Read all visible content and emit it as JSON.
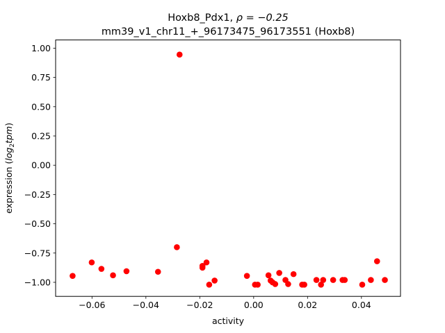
{
  "chart_data": {
    "type": "scatter",
    "title_line1_prefix": "Hoxb8_Pdx1, ",
    "title_line1_rho": "ρ = −0.25",
    "title_line2": "mm39_v1_chr11_+_96173475_96173551 (Hoxb8)",
    "xlabel": "activity",
    "ylabel_prefix": "expression (",
    "ylabel_math": "log",
    "ylabel_sub": "2",
    "ylabel_tpm": "tpm",
    "ylabel_suffix": ")",
    "xlim": [
      -0.0735,
      0.0545
    ],
    "ylim": [
      -1.12,
      1.07
    ],
    "x_ticks": [
      -0.06,
      -0.04,
      -0.02,
      0.0,
      0.02,
      0.04
    ],
    "x_tick_labels": [
      "−0.06",
      "−0.04",
      "−0.02",
      "0.00",
      "0.02",
      "0.04"
    ],
    "y_ticks": [
      1.0,
      0.75,
      0.5,
      0.25,
      0.0,
      -0.25,
      -0.5,
      -0.75,
      -1.0
    ],
    "y_tick_labels": [
      "1.00",
      "0.75",
      "0.50",
      "0.25",
      "0.00",
      "−0.25",
      "−0.50",
      "−0.75",
      "−1.00"
    ],
    "marker_color": "#ff0000",
    "grid": false,
    "points": [
      {
        "x": -0.0672,
        "y": -0.945
      },
      {
        "x": -0.0601,
        "y": -0.83
      },
      {
        "x": -0.0565,
        "y": -0.885
      },
      {
        "x": -0.0522,
        "y": -0.94
      },
      {
        "x": -0.0472,
        "y": -0.905
      },
      {
        "x": -0.0355,
        "y": -0.91
      },
      {
        "x": -0.0285,
        "y": -0.7
      },
      {
        "x": -0.0275,
        "y": 0.945
      },
      {
        "x": -0.019,
        "y": -0.86
      },
      {
        "x": -0.019,
        "y": -0.875
      },
      {
        "x": -0.0175,
        "y": -0.83
      },
      {
        "x": -0.0165,
        "y": -1.02
      },
      {
        "x": -0.0145,
        "y": -0.985
      },
      {
        "x": -0.0025,
        "y": -0.945
      },
      {
        "x": 0.0005,
        "y": -1.02
      },
      {
        "x": 0.0015,
        "y": -1.02
      },
      {
        "x": 0.0055,
        "y": -0.94
      },
      {
        "x": 0.0063,
        "y": -0.985
      },
      {
        "x": 0.007,
        "y": -1.0
      },
      {
        "x": 0.008,
        "y": -1.015
      },
      {
        "x": 0.0095,
        "y": -0.92
      },
      {
        "x": 0.0118,
        "y": -0.98
      },
      {
        "x": 0.0128,
        "y": -1.015
      },
      {
        "x": 0.0148,
        "y": -0.93
      },
      {
        "x": 0.018,
        "y": -1.02
      },
      {
        "x": 0.0188,
        "y": -1.02
      },
      {
        "x": 0.0233,
        "y": -0.98
      },
      {
        "x": 0.025,
        "y": -1.02
      },
      {
        "x": 0.0258,
        "y": -0.98
      },
      {
        "x": 0.0295,
        "y": -0.98
      },
      {
        "x": 0.033,
        "y": -0.98
      },
      {
        "x": 0.0338,
        "y": -0.98
      },
      {
        "x": 0.0403,
        "y": -1.02
      },
      {
        "x": 0.0435,
        "y": -0.98
      },
      {
        "x": 0.0458,
        "y": -0.82
      },
      {
        "x": 0.0487,
        "y": -0.98
      }
    ]
  }
}
